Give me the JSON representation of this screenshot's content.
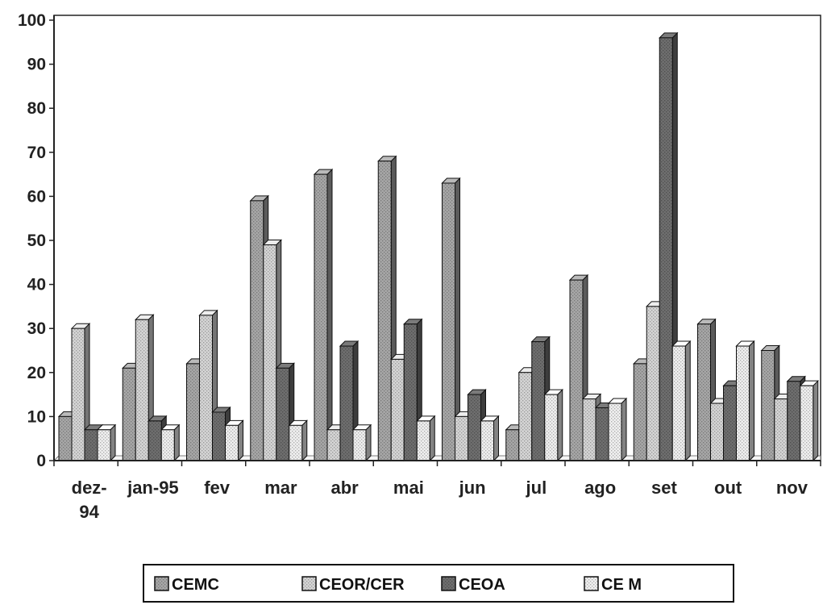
{
  "chart_data": {
    "type": "bar",
    "title": "",
    "xlabel": "",
    "ylabel": "",
    "ylim": [
      0,
      100
    ],
    "yticks": [
      0,
      10,
      20,
      30,
      40,
      50,
      60,
      70,
      80,
      90,
      100
    ],
    "grid": false,
    "legend_position": "bottom",
    "categories": [
      [
        "dez-",
        "94"
      ],
      [
        "jan-95"
      ],
      [
        "fev"
      ],
      [
        "mar"
      ],
      [
        "abr"
      ],
      [
        "mai"
      ],
      [
        "jun"
      ],
      [
        "jul"
      ],
      [
        "ago"
      ],
      [
        "set"
      ],
      [
        "out"
      ],
      [
        "nov"
      ]
    ],
    "series": [
      {
        "name": "CEMC",
        "color": "#a6a6a6",
        "values": [
          10,
          21,
          22,
          59,
          65,
          68,
          63,
          7,
          41,
          22,
          31,
          25
        ]
      },
      {
        "name": "CEOR/CER",
        "color": "#d4d4d4",
        "values": [
          30,
          32,
          33,
          49,
          7,
          23,
          10,
          20,
          14,
          35,
          13,
          14
        ]
      },
      {
        "name": "CEOA",
        "color": "#6e6e6e",
        "values": [
          7,
          9,
          11,
          21,
          26,
          31,
          15,
          27,
          12,
          96,
          17,
          18
        ]
      },
      {
        "name": "CE M",
        "color": "#eeeeee",
        "values": [
          7,
          7,
          8,
          8,
          7,
          9,
          9,
          15,
          13,
          26,
          26,
          17
        ]
      }
    ]
  }
}
